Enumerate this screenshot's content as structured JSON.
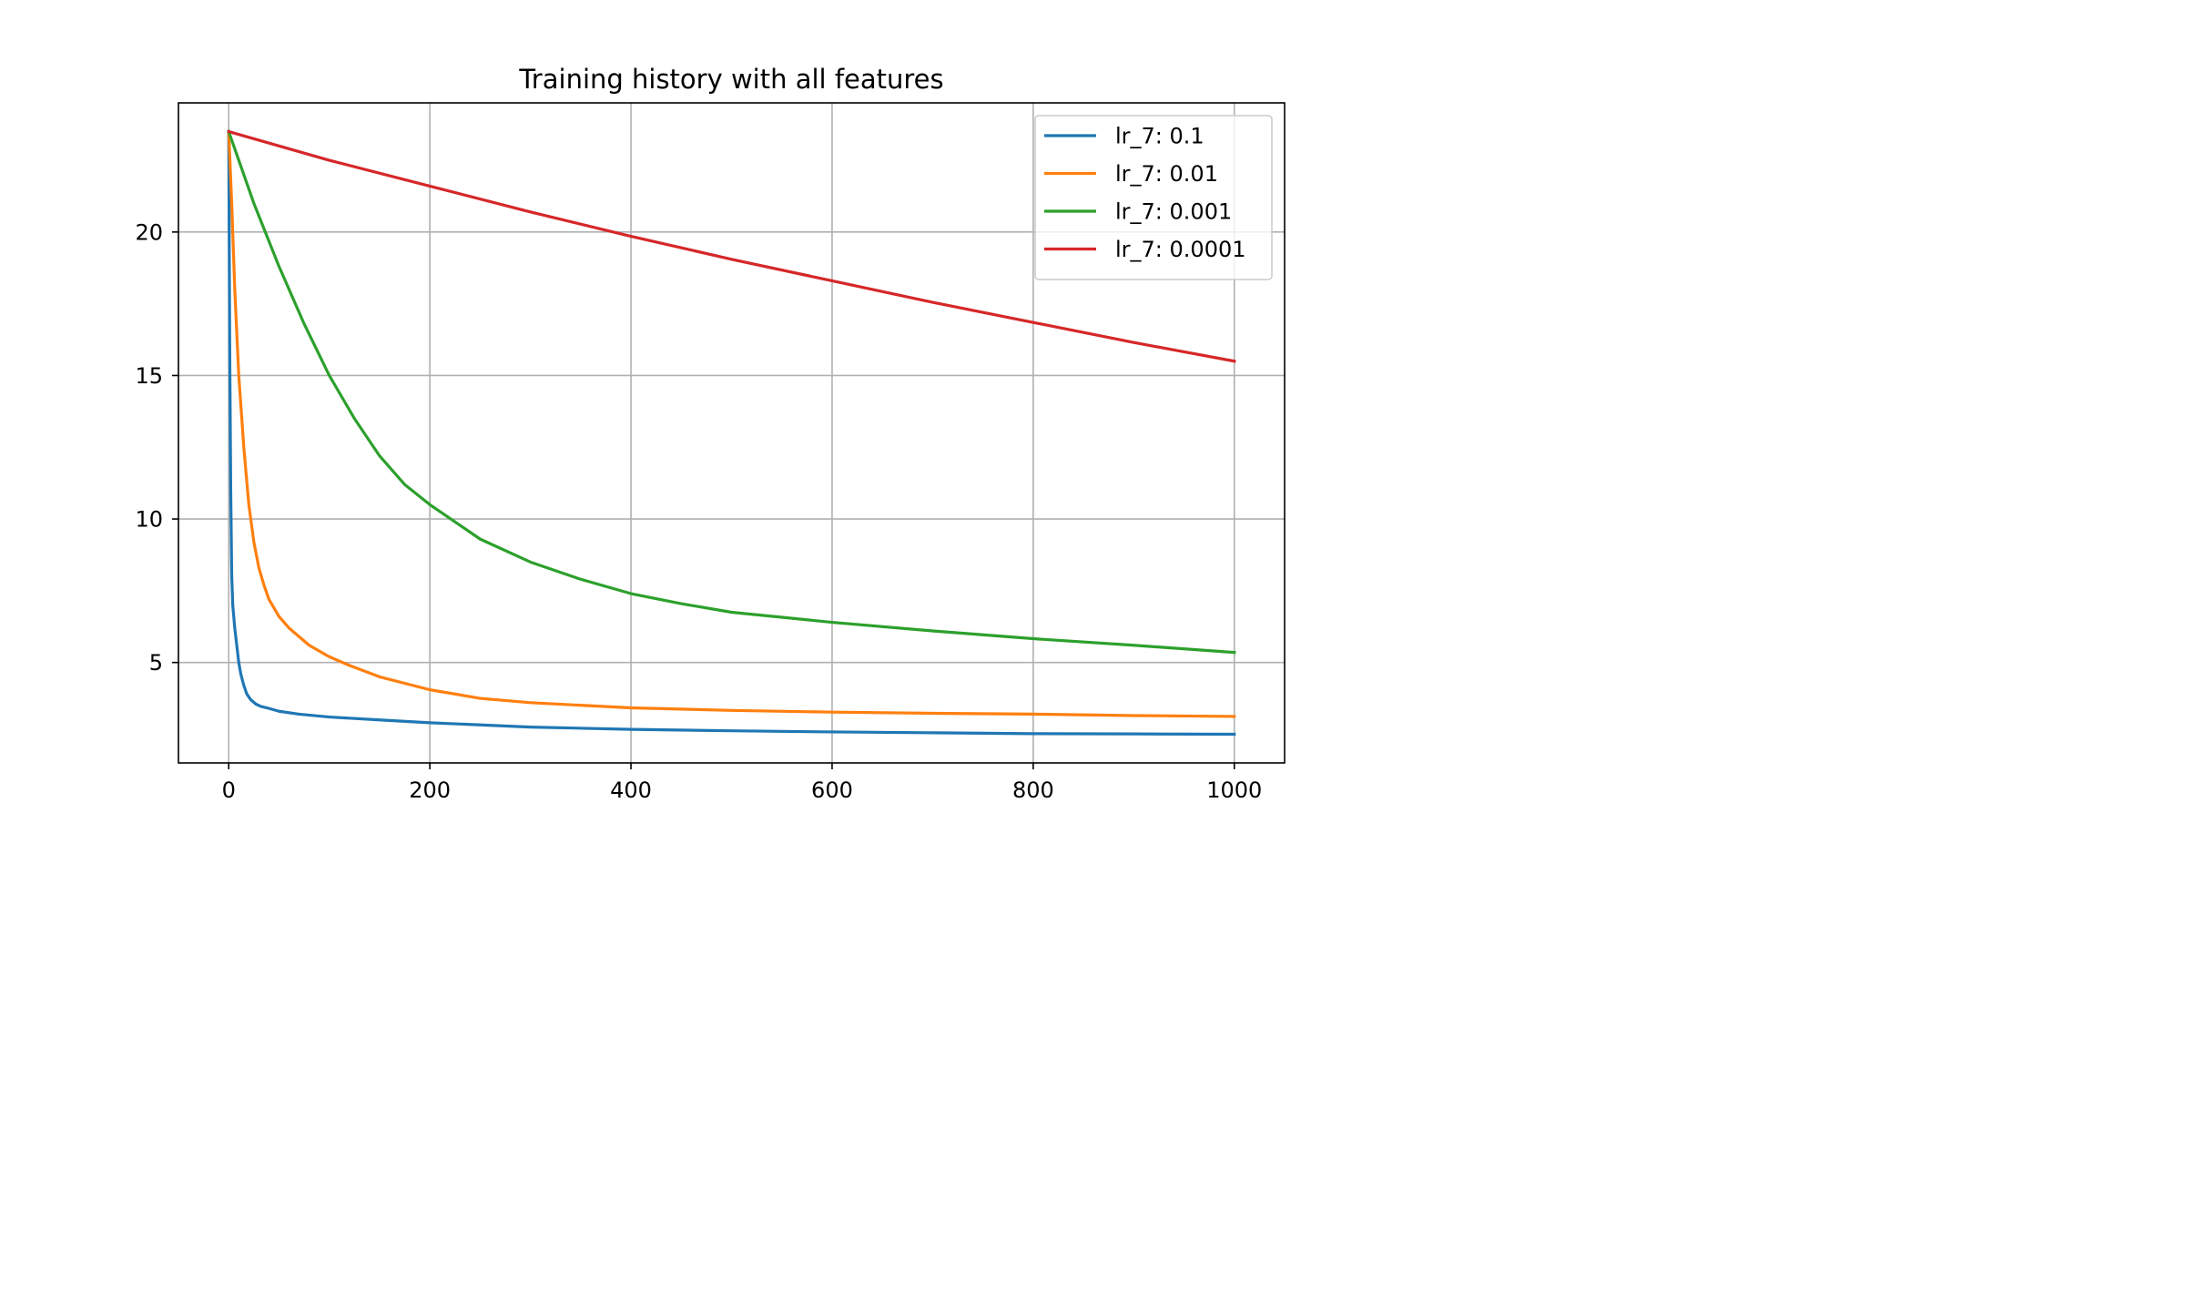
{
  "chart_data": {
    "type": "line",
    "title": "Training history with all features",
    "xlabel": "",
    "ylabel": "",
    "xlim": [
      -50,
      1050
    ],
    "ylim": [
      1.5,
      24.5
    ],
    "x_ticks": [
      0,
      200,
      400,
      600,
      800,
      1000
    ],
    "y_ticks": [
      5,
      10,
      15,
      20
    ],
    "grid": true,
    "legend_position": "upper-right",
    "series": [
      {
        "name": "lr_7: 0.1",
        "color": "#1f77b4",
        "x": [
          0,
          1,
          2,
          3,
          4,
          6,
          8,
          10,
          12,
          15,
          18,
          22,
          27,
          32,
          40,
          50,
          70,
          100,
          150,
          200,
          300,
          400,
          500,
          600,
          700,
          800,
          900,
          1000
        ],
        "y": [
          23.5,
          16.0,
          11.0,
          8.0,
          7.0,
          6.2,
          5.6,
          5.0,
          4.6,
          4.2,
          3.9,
          3.7,
          3.55,
          3.47,
          3.4,
          3.3,
          3.2,
          3.1,
          3.0,
          2.9,
          2.75,
          2.67,
          2.62,
          2.58,
          2.55,
          2.52,
          2.51,
          2.5
        ]
      },
      {
        "name": "lr_7: 0.01",
        "color": "#ff7f0e",
        "x": [
          0,
          3,
          6,
          10,
          15,
          20,
          25,
          30,
          35,
          40,
          50,
          60,
          80,
          100,
          120,
          150,
          200,
          250,
          300,
          400,
          500,
          600,
          700,
          800,
          900,
          1000
        ],
        "y": [
          23.5,
          21.0,
          18.0,
          15.0,
          12.5,
          10.5,
          9.2,
          8.3,
          7.7,
          7.2,
          6.6,
          6.2,
          5.6,
          5.2,
          4.9,
          4.5,
          4.05,
          3.75,
          3.6,
          3.42,
          3.33,
          3.27,
          3.23,
          3.2,
          3.15,
          3.12
        ]
      },
      {
        "name": "lr_7: 0.001",
        "color": "#2ca02c",
        "x": [
          0,
          25,
          50,
          75,
          100,
          125,
          150,
          175,
          200,
          225,
          250,
          300,
          350,
          400,
          450,
          500,
          600,
          700,
          800,
          900,
          1000
        ],
        "y": [
          23.5,
          21.0,
          18.8,
          16.8,
          15.0,
          13.5,
          12.2,
          11.2,
          10.5,
          9.9,
          9.3,
          8.5,
          7.9,
          7.4,
          7.05,
          6.75,
          6.4,
          6.1,
          5.83,
          5.6,
          5.35
        ]
      },
      {
        "name": "lr_7: 0.0001",
        "color": "#d62728",
        "x": [
          0,
          100,
          200,
          300,
          400,
          500,
          600,
          700,
          800,
          900,
          1000
        ],
        "y": [
          23.5,
          22.5,
          21.6,
          20.7,
          19.85,
          19.05,
          18.3,
          17.55,
          16.85,
          16.15,
          15.5
        ]
      }
    ]
  }
}
